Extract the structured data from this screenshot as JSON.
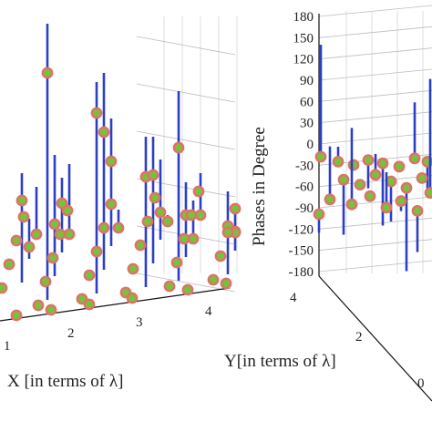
{
  "colors": {
    "stem": "#2b3fc4",
    "marker_edge": "#e0706a",
    "marker_fill": "#7bbf3a",
    "axis": "#111111",
    "grid": "#bdbdbd"
  },
  "chart_data": [
    {
      "type": "scatter",
      "subtype": "3d-stem",
      "title": "",
      "xlabel": "X [in terms of λ]",
      "x_ticks": [
        "1",
        "2",
        "3",
        "4"
      ],
      "grid": true
    },
    {
      "type": "scatter",
      "subtype": "3d-stem",
      "title": "",
      "ylabel": "Phases in Degree",
      "y_axis_label": "Y[in terms of λ]",
      "z_ticks": [
        "180",
        "150",
        "120",
        "90",
        "60",
        "30",
        "0",
        "-30",
        "-60",
        "-90",
        "-120",
        "-150",
        "-180"
      ],
      "y_ticks": [
        "4",
        "2",
        "0"
      ],
      "zlim": [
        -180,
        180
      ],
      "grid": true,
      "stems": [
        {
          "value": 140
        },
        {
          "value": 0
        },
        {
          "value": -30
        },
        {
          "value": -60
        },
        {
          "value": -110
        },
        {
          "value": -20
        },
        {
          "value": 60
        },
        {
          "value": -65
        },
        {
          "value": -110
        },
        {
          "value": -40
        },
        {
          "value": 0
        },
        {
          "value": -90
        },
        {
          "value": -155
        },
        {
          "value": -30
        },
        {
          "value": 30
        },
        {
          "value": 60
        },
        {
          "value": -45
        },
        {
          "value": 0
        },
        {
          "value": -60
        },
        {
          "value": -110
        },
        {
          "value": 120
        },
        {
          "value": -80
        }
      ]
    }
  ],
  "left_stems": [
    {
      "top": 26,
      "hp": 54
    },
    {
      "top": 90,
      "hp": 34
    },
    {
      "top": 150,
      "hp": 44
    },
    {
      "top": 100,
      "hp": 62
    },
    {
      "top": 210,
      "hp": 38
    },
    {
      "top": 190,
      "hp": 30
    },
    {
      "top": 170,
      "hp": 76
    },
    {
      "top": 80,
      "hp": 65
    },
    {
      "top": 150,
      "hp": 42
    },
    {
      "top": 200,
      "hp": 36
    },
    {
      "top": 230,
      "hp": 24
    },
    {
      "top": 240,
      "hp": 31
    },
    {
      "top": 195,
      "hp": 28
    },
    {
      "top": 130,
      "hp": 47
    },
    {
      "top": 175,
      "hp": 58
    },
    {
      "top": 220,
      "hp": 73
    },
    {
      "top": 250,
      "hp": 64
    },
    {
      "top": 205,
      "hp": 52
    },
    {
      "top": 180,
      "hp": 85
    },
    {
      "top": 230,
      "hp": 61
    },
    {
      "top": 236,
      "hp": 80
    },
    {
      "top": 190,
      "hp": 82
    }
  ]
}
